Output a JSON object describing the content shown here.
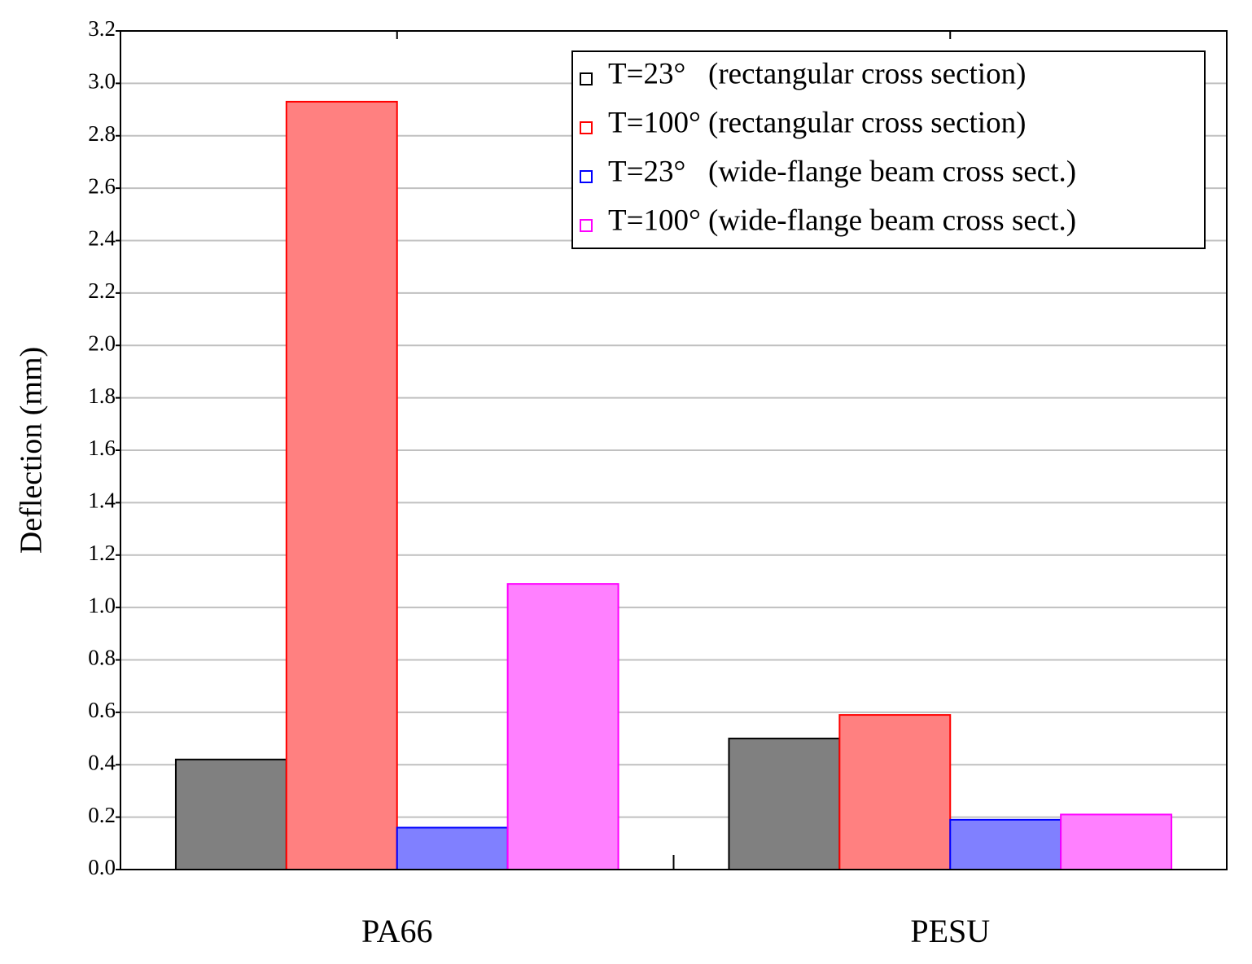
{
  "chart_data": {
    "type": "bar",
    "y_label": "Deflection (mm)",
    "categories": [
      "PA66",
      "PESU"
    ],
    "series": [
      {
        "name": "T=23°   (rectangular cross section)",
        "color": "#808080",
        "edgecolor": "#000000",
        "values": [
          0.42,
          0.5
        ]
      },
      {
        "name": "T=100° (rectangular cross section)",
        "color": "#ff8080",
        "edgecolor": "#ff0000",
        "values": [
          2.93,
          0.59
        ]
      },
      {
        "name": "T=23°   (wide-flange beam cross sect.)",
        "color": "#8080ff",
        "edgecolor": "#0000ff",
        "values": [
          0.16,
          0.19
        ]
      },
      {
        "name": "T=100° (wide-flange beam cross sect.)",
        "color": "#ff80ff",
        "edgecolor": "#ff00ff",
        "values": [
          1.09,
          0.21
        ]
      }
    ],
    "ylim": [
      0,
      3.2
    ],
    "yticks": [
      {
        "value": 0,
        "label": "0.0"
      },
      0.2,
      0.4,
      0.6,
      0.8,
      {
        "value": 1,
        "label": "1.0"
      },
      1.2,
      1.4,
      1.6,
      1.8,
      {
        "value": 2,
        "label": "2.0"
      },
      2.2,
      2.4,
      2.6,
      2.8,
      {
        "value": 3,
        "label": "3.0"
      },
      3.2
    ],
    "grid": true,
    "legend": "upper right"
  }
}
